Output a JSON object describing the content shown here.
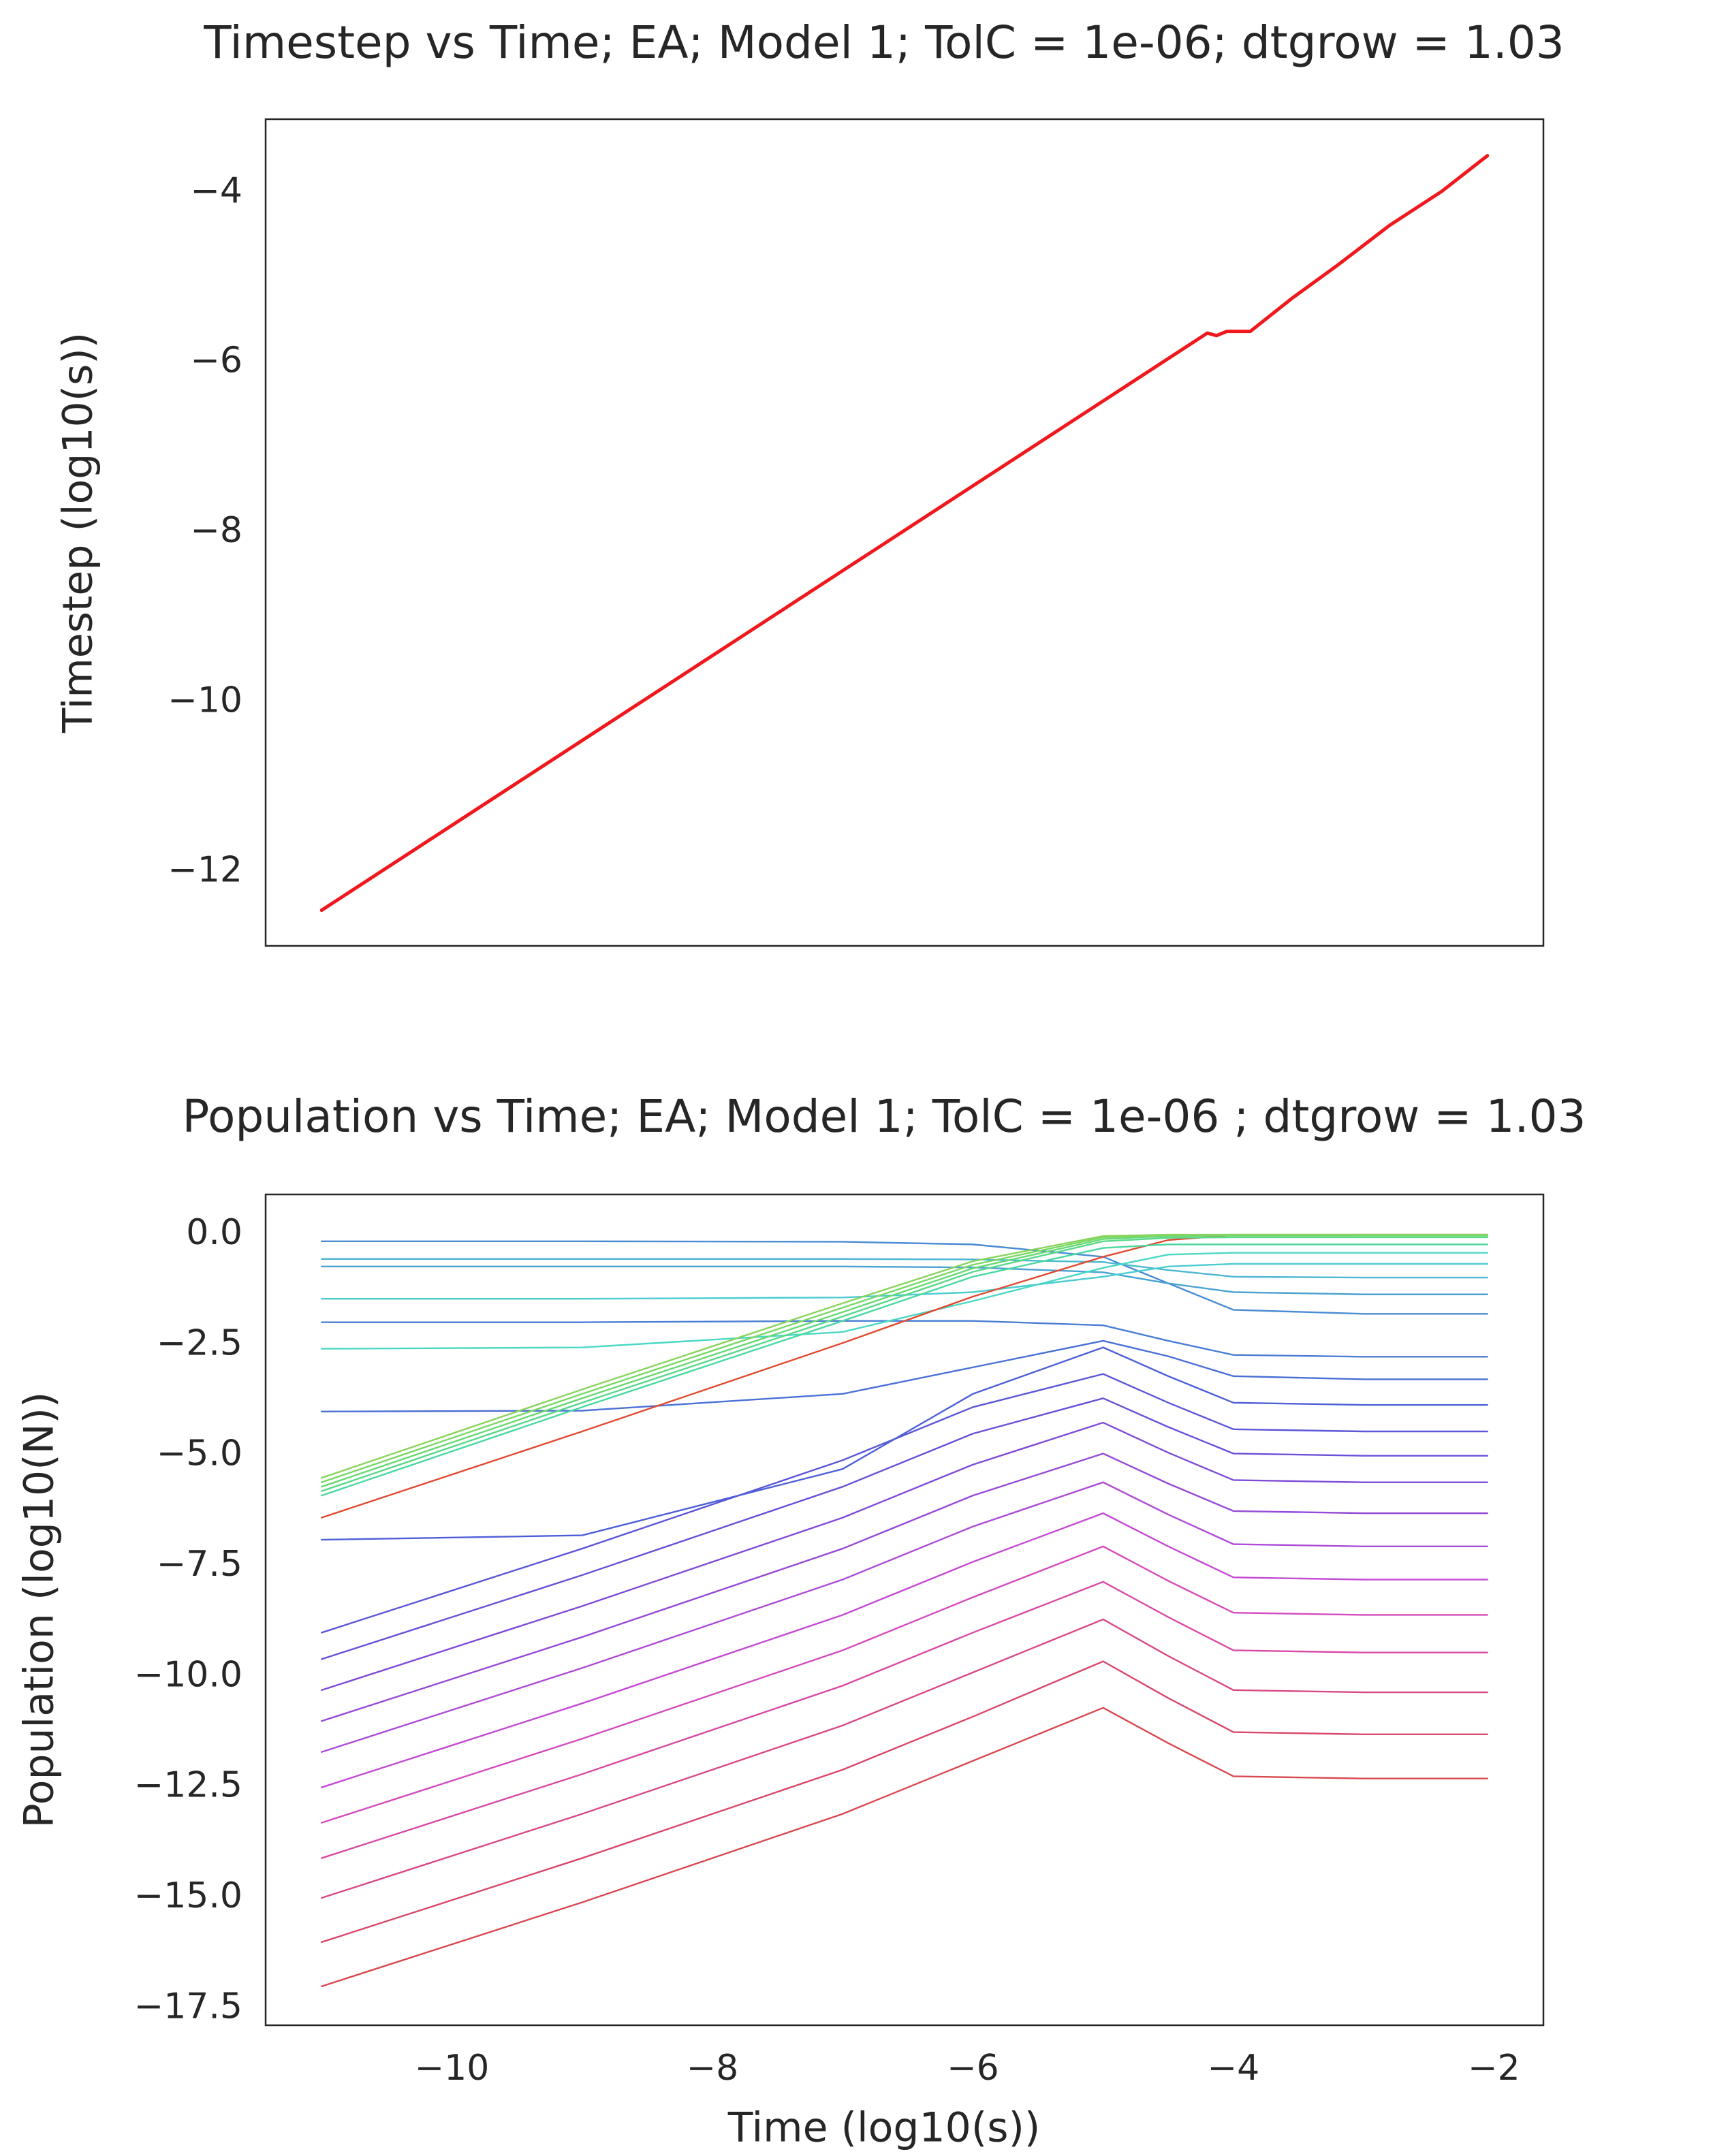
{
  "chart_data": [
    {
      "type": "line",
      "title": "Timestep vs Time; EA; Model 1; TolC = 1e-06; dtgrow = 1.03",
      "ylabel": "Timestep (log10(s))",
      "xlim": [
        -11.43,
        -1.62
      ],
      "ylim": [
        -12.87,
        -3.13
      ],
      "yticks": [
        {
          "value": -12,
          "label": "−12"
        },
        {
          "value": -10,
          "label": "−10"
        },
        {
          "value": -8,
          "label": "−8"
        },
        {
          "value": -6,
          "label": "−6"
        },
        {
          "value": -4,
          "label": "−4"
        }
      ],
      "x": [
        -11,
        -10,
        -9,
        -8,
        -7,
        -6,
        -5,
        -4.2,
        -4.13,
        -4.05,
        -3.87,
        -3.55,
        -3.2,
        -2.8,
        -2.4,
        -2.05
      ],
      "series": [
        {
          "color": "#f0181c",
          "values": [
            -12.45,
            -11.45,
            -10.45,
            -9.45,
            -8.45,
            -7.45,
            -6.45,
            -5.65,
            -5.68,
            -5.63,
            -5.63,
            -5.24,
            -4.85,
            -4.38,
            -3.98,
            -3.56
          ]
        }
      ]
    },
    {
      "type": "line",
      "title": "Population vs Time; EA; Model 1; TolC = 1e-06 ; dtgrow = 1.03",
      "xlabel": "Time (log10(s))",
      "ylabel": "Population (log10(N))",
      "xlim": [
        -11.43,
        -1.62
      ],
      "ylim": [
        -17.88,
        0.91
      ],
      "xticks": [
        {
          "value": -10,
          "label": "−10"
        },
        {
          "value": -8,
          "label": "−8"
        },
        {
          "value": -6,
          "label": "−6"
        },
        {
          "value": -4,
          "label": "−4"
        },
        {
          "value": -2,
          "label": "−2"
        }
      ],
      "yticks": [
        {
          "value": -17.5,
          "label": "−17.5"
        },
        {
          "value": -15,
          "label": "−15.0"
        },
        {
          "value": -12.5,
          "label": "−12.5"
        },
        {
          "value": -10,
          "label": "−10.0"
        },
        {
          "value": -7.5,
          "label": "−7.5"
        },
        {
          "value": -5,
          "label": "−5.0"
        },
        {
          "value": -2.5,
          "label": "−2.5"
        },
        {
          "value": 0,
          "label": "0.0"
        }
      ],
      "x": [
        -11,
        -9,
        -7,
        -6,
        -5,
        -4.5,
        -4,
        -3,
        -2.05
      ],
      "series": [
        {
          "color": "#d9474f",
          "values": [
            -17,
            -15.1,
            -13.1,
            -11.9,
            -10.7,
            -11.5,
            -12.25,
            -12.3,
            -12.3
          ]
        },
        {
          "color": "#d9476a",
          "values": [
            -16,
            -14.1,
            -12.1,
            -10.9,
            -9.65,
            -10.48,
            -11.25,
            -11.3,
            -11.3
          ]
        },
        {
          "color": "#d94886",
          "values": [
            -15,
            -13.1,
            -11.1,
            -9.9,
            -8.7,
            -9.53,
            -10.3,
            -10.35,
            -10.35
          ]
        },
        {
          "color": "#d849a3",
          "values": [
            -14.1,
            -12.2,
            -10.2,
            -9.0,
            -7.85,
            -8.65,
            -9.4,
            -9.45,
            -9.45
          ]
        },
        {
          "color": "#d44abe",
          "values": [
            -13.3,
            -11.4,
            -9.4,
            -8.2,
            -7.05,
            -7.83,
            -8.55,
            -8.6,
            -8.6
          ]
        },
        {
          "color": "#c44ad4",
          "values": [
            -12.5,
            -10.6,
            -8.6,
            -7.4,
            -6.3,
            -7.05,
            -7.75,
            -7.8,
            -7.8
          ]
        },
        {
          "color": "#ad4ad8",
          "values": [
            -11.7,
            -9.8,
            -7.8,
            -6.6,
            -5.6,
            -6.33,
            -7.0,
            -7.05,
            -7.05
          ]
        },
        {
          "color": "#964ad8",
          "values": [
            -11,
            -9.1,
            -7.1,
            -5.9,
            -4.95,
            -5.63,
            -6.25,
            -6.3,
            -6.3
          ]
        },
        {
          "color": "#7f4ad8",
          "values": [
            -10.3,
            -8.4,
            -6.4,
            -5.2,
            -4.25,
            -4.93,
            -5.55,
            -5.6,
            -5.6
          ]
        },
        {
          "color": "#6c4fd8",
          "values": [
            -9.6,
            -7.7,
            -5.7,
            -4.5,
            -3.7,
            -4.35,
            -4.95,
            -5.0,
            -5.0
          ]
        },
        {
          "color": "#5c56d8",
          "values": [
            -9,
            -7.1,
            -5.1,
            -3.9,
            -3.15,
            -3.8,
            -4.4,
            -4.45,
            -4.45
          ]
        },
        {
          "color": "#4d5fd8",
          "values": [
            -6.9,
            -6.8,
            -5.3,
            -3.6,
            -2.55,
            -3.2,
            -3.8,
            -3.85,
            -3.85
          ]
        },
        {
          "color": "#4a70d6",
          "values": [
            -4.0,
            -3.98,
            -3.6,
            -3.0,
            -2.4,
            -2.75,
            -3.2,
            -3.27,
            -3.27
          ]
        },
        {
          "color": "#4a7ed4",
          "values": [
            -1.98,
            -1.98,
            -1.95,
            -1.95,
            -2.05,
            -2.4,
            -2.72,
            -2.76,
            -2.76
          ]
        },
        {
          "color": "#4a8bd2",
          "values": [
            -0.15,
            -0.15,
            -0.16,
            -0.22,
            -0.5,
            -1.1,
            -1.7,
            -1.79,
            -1.79
          ]
        },
        {
          "color": "#4aa2d0",
          "values": [
            -0.72,
            -0.72,
            -0.72,
            -0.74,
            -0.85,
            -1.1,
            -1.3,
            -1.35,
            -1.35
          ]
        },
        {
          "color": "#4ab8d0",
          "values": [
            -0.55,
            -0.55,
            -0.55,
            -0.56,
            -0.62,
            -0.8,
            -0.95,
            -0.97,
            -0.97
          ]
        },
        {
          "color": "#4accd0",
          "values": [
            -1.45,
            -1.45,
            -1.42,
            -1.3,
            -0.95,
            -0.72,
            -0.66,
            -0.66,
            -0.66
          ]
        },
        {
          "color": "#4ad8c4",
          "values": [
            -2.58,
            -2.55,
            -2.2,
            -1.5,
            -0.75,
            -0.45,
            -0.41,
            -0.41,
            -0.41
          ]
        },
        {
          "color": "#e04a30",
          "values": [
            -6.4,
            -4.45,
            -2.45,
            -1.4,
            -0.5,
            -0.12,
            -0.01,
            0,
            0
          ]
        },
        {
          "color": "#4ad8a0",
          "values": [
            -5.9,
            -3.9,
            -1.95,
            -0.95,
            -0.3,
            -0.22,
            -0.22,
            -0.22,
            -0.22
          ]
        },
        {
          "color": "#58d888",
          "values": [
            -5.8,
            -3.8,
            -1.85,
            -0.84,
            -0.15,
            -0.07,
            -0.06,
            -0.06,
            -0.06
          ]
        },
        {
          "color": "#68d874",
          "values": [
            -5.7,
            -3.7,
            -1.75,
            -0.76,
            -0.1,
            -0.03,
            -0.02,
            -0.02,
            -0.02
          ]
        },
        {
          "color": "#7ad866",
          "values": [
            -5.6,
            -3.6,
            -1.65,
            -0.68,
            -0.06,
            -0.01,
            0,
            0,
            0
          ]
        },
        {
          "color": "#8ad45c",
          "values": [
            -5.5,
            -3.5,
            -1.55,
            -0.6,
            -0.03,
            0,
            0,
            0,
            0
          ]
        }
      ]
    }
  ]
}
